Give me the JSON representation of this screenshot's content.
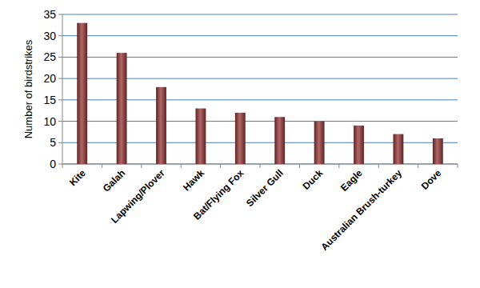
{
  "chart_data": {
    "type": "bar",
    "y_label": "Number of birdstrikes",
    "categories": [
      "Kite",
      "Galah",
      "Lapwing/Plover",
      "Hawk",
      "Bat/Flying Fox",
      "Silver Gull",
      "Duck",
      "Eagle",
      "Australian Brush-turkey",
      "Dove"
    ],
    "values": [
      33,
      26,
      18,
      13,
      12,
      11,
      10,
      9,
      7,
      6
    ],
    "color": "#943634",
    "ylim": [
      0,
      35
    ],
    "yticks": [
      0,
      5,
      10,
      15,
      20,
      25,
      30,
      35
    ],
    "grid": true
  }
}
